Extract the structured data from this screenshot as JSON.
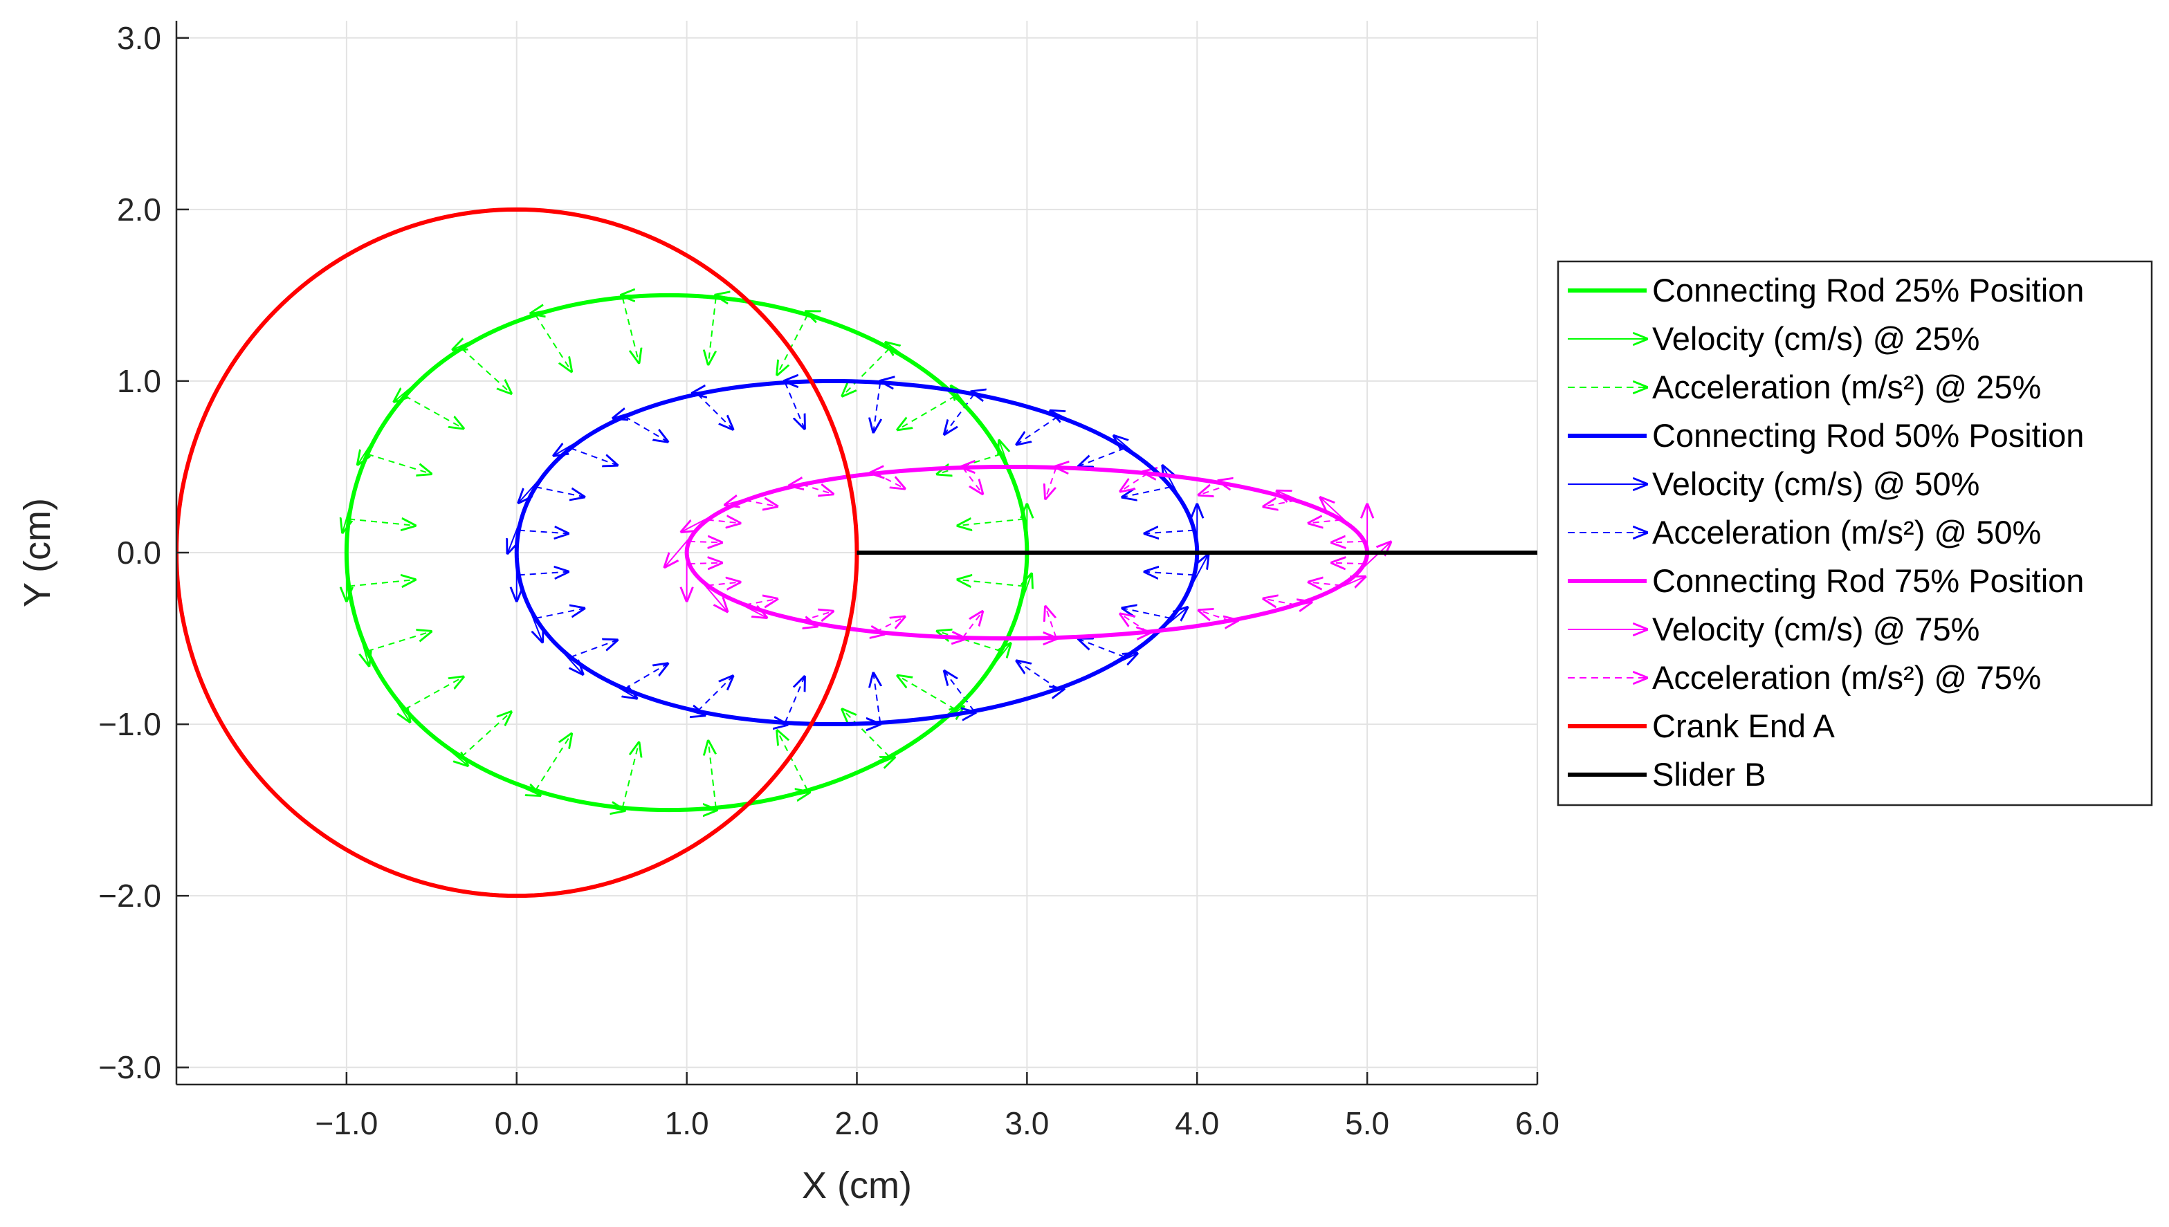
{
  "chart_data": {
    "type": "line",
    "xlabel": "X (cm)",
    "ylabel": "Y (cm)",
    "xlim": [
      -2,
      6
    ],
    "ylim": [
      -3.1,
      3.1
    ],
    "xticks": [
      -1,
      0,
      1,
      2,
      3,
      4,
      5,
      6
    ],
    "yticks": [
      -3,
      -2,
      -1,
      0,
      1,
      2,
      3
    ],
    "xtick_labels": [
      "−1.0",
      "0.0",
      "1.0",
      "2.0",
      "3.0",
      "4.0",
      "5.0",
      "6.0"
    ],
    "ytick_labels": [
      "−3.0",
      "−2.0",
      "−1.0",
      "0.0",
      "1.0",
      "2.0",
      "3.0"
    ],
    "grid": true,
    "legend_position": "outside-right",
    "curves": [
      {
        "name": "Connecting Rod 25% Position",
        "kind": "ellipse",
        "cx": 1.0,
        "cy": 0.0,
        "rx": 2.0,
        "ry": 1.5,
        "skew": 0.21,
        "color": "#00ff00"
      },
      {
        "name": "Connecting Rod 50% Position",
        "kind": "ellipse",
        "cx": 2.0,
        "cy": 0.0,
        "rx": 2.0,
        "ry": 1.0,
        "skew": 0.29,
        "color": "#0000ff"
      },
      {
        "name": "Connecting Rod 75% Position",
        "kind": "ellipse",
        "cx": 3.0,
        "cy": 0.0,
        "rx": 2.0,
        "ry": 0.5,
        "skew": 0.21,
        "color": "#ff00ff"
      },
      {
        "name": "Crank End A",
        "kind": "circle",
        "cx": 0.0,
        "cy": 0.0,
        "r": 2.0,
        "color": "#ff0000"
      },
      {
        "name": "Slider B",
        "kind": "segment",
        "x": [
          2.0,
          6.0
        ],
        "y": [
          0.0,
          0.0
        ],
        "color": "#000000"
      }
    ],
    "vector_fields": [
      {
        "name": "Velocity (cm/s) @ 25%",
        "curve": 0,
        "type": "velocity",
        "color": "#00ff00",
        "dashed": false
      },
      {
        "name": "Acceleration (m/s²) @ 25%",
        "curve": 0,
        "type": "acceleration",
        "color": "#00ff00",
        "dashed": true
      },
      {
        "name": "Velocity (cm/s) @ 50%",
        "curve": 1,
        "type": "velocity",
        "color": "#0000ff",
        "dashed": false
      },
      {
        "name": "Acceleration (m/s²) @ 50%",
        "curve": 1,
        "type": "acceleration",
        "color": "#0000ff",
        "dashed": true
      },
      {
        "name": "Velocity (cm/s) @ 75%",
        "curve": 2,
        "type": "velocity",
        "color": "#ff00ff",
        "dashed": false
      },
      {
        "name": "Acceleration (m/s²) @ 75%",
        "curve": 2,
        "type": "acceleration",
        "color": "#ff00ff",
        "dashed": true
      }
    ],
    "vector_sample_count": 24,
    "legend": [
      {
        "label": "Connecting Rod 25% Position",
        "style": "line",
        "color": "#00ff00"
      },
      {
        "label": "Velocity (cm/s) @ 25%",
        "style": "arrow",
        "color": "#00ff00"
      },
      {
        "label": "Acceleration (m/s²) @ 25%",
        "style": "dashed-arrow",
        "color": "#00ff00"
      },
      {
        "label": "Connecting Rod 50% Position",
        "style": "line",
        "color": "#0000ff"
      },
      {
        "label": "Velocity (cm/s) @ 50%",
        "style": "arrow",
        "color": "#0000ff"
      },
      {
        "label": "Acceleration (m/s²) @ 50%",
        "style": "dashed-arrow",
        "color": "#0000ff"
      },
      {
        "label": "Connecting Rod 75% Position",
        "style": "line",
        "color": "#ff00ff"
      },
      {
        "label": "Velocity (cm/s) @ 75%",
        "style": "arrow",
        "color": "#ff00ff"
      },
      {
        "label": "Acceleration (m/s²) @ 75%",
        "style": "dashed-arrow",
        "color": "#ff00ff"
      },
      {
        "label": "Crank End A",
        "style": "line",
        "color": "#ff0000"
      },
      {
        "label": "Slider B",
        "style": "line",
        "color": "#000000"
      }
    ]
  }
}
